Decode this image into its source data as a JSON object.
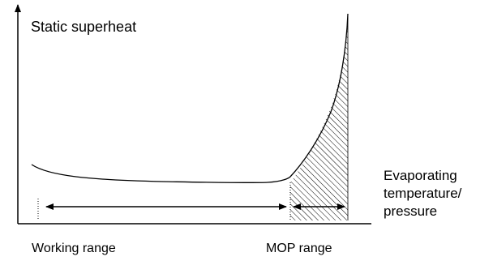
{
  "diagram": {
    "y_axis_label": "Static superheat",
    "x_axis_label_lines": [
      "Evaporating",
      "temperature/",
      "pressure"
    ],
    "working_range_label": "Working range",
    "mop_range_label": "MOP range"
  },
  "colors": {
    "line": "#000000",
    "hatch": "#000000",
    "background": "#ffffff"
  }
}
